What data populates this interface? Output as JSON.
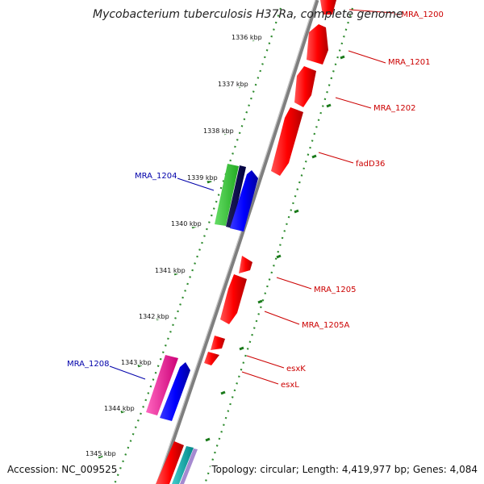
{
  "title": "Mycobacterium tuberculosis H37Ra, complete genome",
  "footer": {
    "accession": "Accession: NC_009525",
    "topology": "Topology: circular; Length: 4,419,977 bp; Genes: 4,084"
  },
  "colors": {
    "backbone": "#808080",
    "forward_gene": "#ff0000",
    "reverse_gene": "#0000ff",
    "forward_label": "#cc0000",
    "reverse_label": "#0000aa",
    "gc_dots": "#2e8b2e",
    "tick_marks": "#1a7a1a"
  },
  "ticks": [
    "1336 kbp",
    "1337 kbp",
    "1338 kbp",
    "1339 kbp",
    "1340 kbp",
    "1341 kbp",
    "1342 kbp",
    "1343 kbp",
    "1344 kbp",
    "1345 kbp"
  ],
  "labels": {
    "forward": [
      "~MRA_1200",
      "MRA_1201",
      "MRA_1202",
      "fadD36",
      "MRA_1205",
      "MRA_1205A",
      "esxK",
      "esxL"
    ],
    "reverse": [
      "MRA_1204",
      "MRA_1208"
    ]
  }
}
